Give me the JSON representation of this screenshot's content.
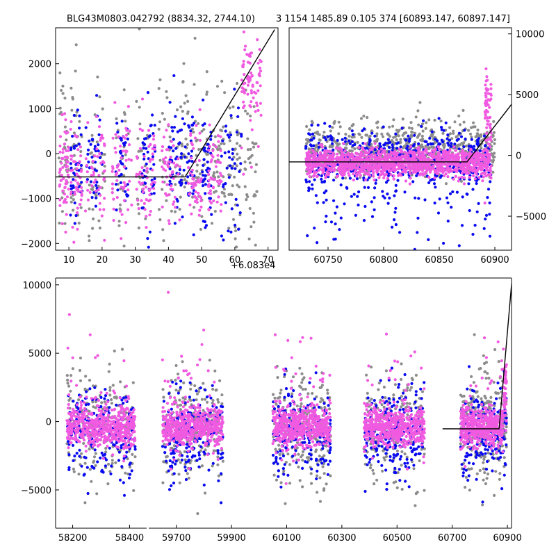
{
  "title": {
    "left": "BLG43M0803.042792 (8834.32, 2744.10)",
    "right": "3 1154 1485.89 0.105 374 [60893.147, 60897.147]"
  },
  "colors": {
    "gray": "#8c8c8c",
    "blue": "#0a0af0",
    "pink": "#f05ae0",
    "line": "#000000"
  },
  "chart_data": [
    {
      "id": "top-left",
      "type": "scatter",
      "xlim": [
        6,
        73
      ],
      "ylim": [
        -2150,
        2800
      ],
      "xticks": [
        10,
        20,
        30,
        40,
        50,
        60,
        70
      ],
      "yticks": [
        -2000,
        -1000,
        0,
        1000,
        2000
      ],
      "y_axis_side": "left",
      "offset_label": "+6.083e4",
      "model_line": [
        [
          6,
          -520
        ],
        [
          45,
          -520
        ],
        [
          72,
          2760
        ]
      ],
      "series": [
        {
          "name": "gray",
          "color_key": "gray",
          "n": 380,
          "clusters": [
            [
              7,
              10
            ],
            [
              10.5,
              14
            ],
            [
              16,
              21
            ],
            [
              24,
              28
            ],
            [
              30,
              34
            ],
            [
              37,
              41
            ],
            [
              42,
              46
            ],
            [
              47,
              52
            ],
            [
              53,
              57
            ],
            [
              58,
              62
            ],
            [
              63,
              67
            ]
          ],
          "mean": -200,
          "sd": 900
        },
        {
          "name": "blue",
          "color_key": "blue",
          "n": 330,
          "clusters": [
            [
              10.5,
              14
            ],
            [
              15,
              20
            ],
            [
              24,
              28
            ],
            [
              32,
              36
            ],
            [
              40,
              44
            ],
            [
              44,
              48
            ],
            [
              50,
              53
            ],
            [
              56,
              62
            ]
          ],
          "mean": -250,
          "sd": 700
        },
        {
          "name": "pink",
          "color_key": "pink",
          "n": 420,
          "clusters": [
            [
              7,
              10
            ],
            [
              10.5,
              14
            ],
            [
              15,
              21
            ],
            [
              23,
              29
            ],
            [
              30,
              36
            ],
            [
              38,
              44
            ],
            [
              46,
              50
            ],
            [
              52,
              56
            ]
          ],
          "mean": -450,
          "sd": 550
        },
        {
          "name": "rise",
          "color_key": "pink",
          "n": 80,
          "clusters": [
            [
              62,
              68
            ]
          ],
          "mean": 1600,
          "sd": 650
        }
      ]
    },
    {
      "id": "top-right",
      "type": "scatter",
      "xlim": [
        60715,
        60915
      ],
      "ylim": [
        -7800,
        10500
      ],
      "xticks": [
        60750,
        60800,
        60850,
        60900
      ],
      "yticks": [
        -5000,
        0,
        5000,
        10000
      ],
      "y_axis_side": "right",
      "model_line": [
        [
          60715,
          -530
        ],
        [
          60875,
          -530
        ],
        [
          60915,
          4200
        ]
      ],
      "series": [
        {
          "name": "gray",
          "color_key": "gray",
          "n": 700,
          "clusters": [
            [
              60730,
              60900
            ]
          ],
          "mean": 600,
          "sd": 1100
        },
        {
          "name": "blue",
          "color_key": "blue",
          "n": 600,
          "clusters": [
            [
              60730,
              60897
            ]
          ],
          "mean": -300,
          "sd": 1300
        },
        {
          "name": "pink",
          "color_key": "pink",
          "n": 1400,
          "clusters": [
            [
              60730,
              60897
            ]
          ],
          "mean": -600,
          "sd": 550
        },
        {
          "name": "rise",
          "color_key": "pink",
          "n": 60,
          "clusters": [
            [
              60891,
              60897
            ]
          ],
          "mean": 3000,
          "sd": 1800
        }
      ]
    },
    {
      "id": "bottom",
      "type": "scatter",
      "broken_axis": true,
      "ylim": [
        -7800,
        10500
      ],
      "yticks": [
        -5000,
        0,
        5000,
        10000
      ],
      "segments": [
        {
          "xlim": [
            58140,
            58460
          ],
          "xticks": [
            58200,
            58400
          ]
        },
        {
          "xlim": [
            59600,
            60915
          ],
          "xticks": [
            59700,
            59900,
            60100,
            60300,
            60500,
            60700,
            60900
          ]
        }
      ],
      "model_line": [
        [
          60665,
          -530
        ],
        [
          60870,
          -530
        ],
        [
          60917,
          10500
        ]
      ],
      "season_clusters": [
        [
          58180,
          58420
        ],
        [
          59650,
          59870
        ],
        [
          60050,
          60260
        ],
        [
          60380,
          60600
        ],
        [
          60730,
          60897
        ]
      ],
      "series": [
        {
          "name": "gray",
          "color_key": "gray",
          "n": 1100,
          "mean": -300,
          "sd": 2000
        },
        {
          "name": "blue",
          "color_key": "blue",
          "n": 1000,
          "mean": -900,
          "sd": 1700
        },
        {
          "name": "pink",
          "color_key": "pink",
          "n": 2600,
          "mean": -400,
          "sd": 700
        },
        {
          "name": "pink-outliers",
          "color_key": "pink",
          "n": 180,
          "mean": 1200,
          "sd": 2600
        }
      ]
    }
  ]
}
